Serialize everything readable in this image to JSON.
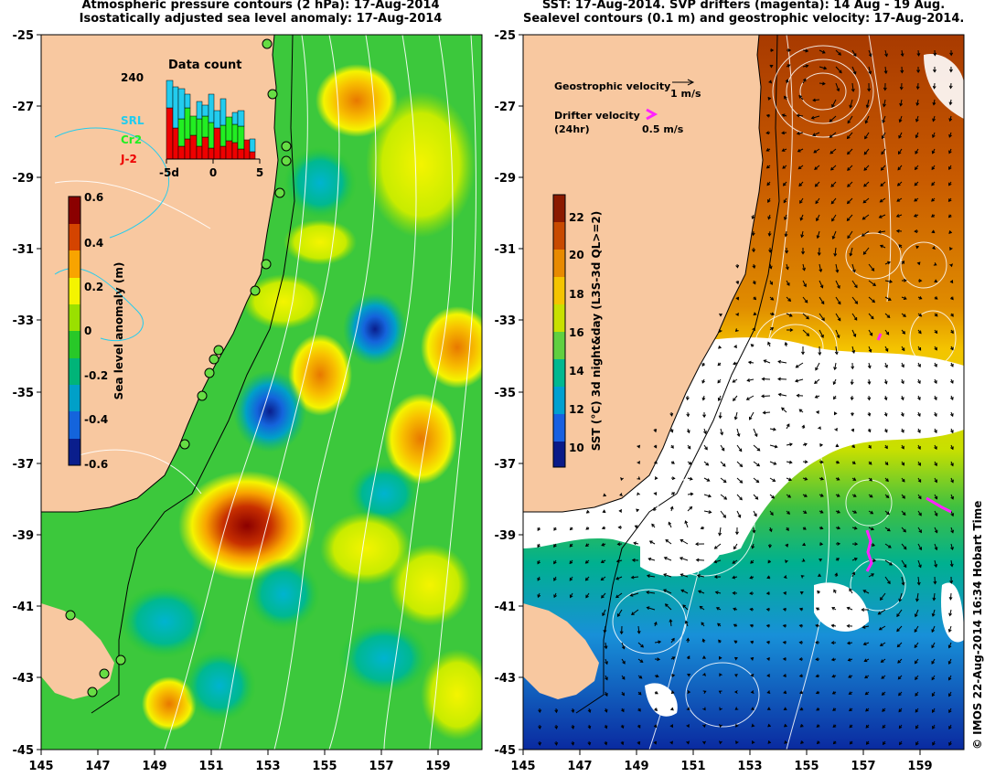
{
  "left_panel": {
    "title_line1": "Atmospheric pressure contours (2 hPa): 17-Aug-2014",
    "title_line2": "Isostatically adjusted sea level anomaly: 17-Aug-2014",
    "colorbar": {
      "label": "Sea level anomaly (m)",
      "ticks": [
        "0.6",
        "0.4",
        "0.2",
        "0",
        "-0.2",
        "-0.4",
        "-0.6"
      ],
      "colors": [
        "#8b0000",
        "#d44400",
        "#f8a400",
        "#f4f400",
        "#9ae000",
        "#28c828",
        "#00b478",
        "#00a0c8",
        "#1464dc",
        "#0a1e8c"
      ]
    },
    "data_count": {
      "title": "Data count",
      "max_label": "240",
      "x_ticks": [
        "-5d",
        "0",
        "5"
      ],
      "legend": [
        {
          "label": "SRL",
          "color": "#22ccee"
        },
        {
          "label": "Cr2",
          "color": "#22ee22"
        },
        {
          "label": "J-2",
          "color": "#ee0000"
        }
      ]
    },
    "lat_labels": [
      "-25",
      "-27",
      "-29",
      "-31",
      "-33",
      "-35",
      "-37",
      "-39",
      "-41",
      "-43",
      "-45"
    ],
    "lon_labels": [
      "145",
      "147",
      "149",
      "151",
      "153",
      "155",
      "157",
      "159"
    ]
  },
  "right_panel": {
    "title_line1": "SST: 17-Aug-2014. SVP drifters (magenta): 14 Aug - 19 Aug.",
    "title_line2": "Sealevel contours (0.1 m) and geostrophic velocity: 17-Aug-2014.",
    "legend_geo": "Geostrophic velocity",
    "legend_geo_scale": "1 m/s",
    "legend_drifter_1": "Drifter velocity",
    "legend_drifter_2": "(24hr)",
    "legend_drifter_scale": "0.5 m/s",
    "colorbar": {
      "label": "SST (°C) 3d night&day (L3S-3d QL>=2)",
      "ticks": [
        "22",
        "20",
        "18",
        "16",
        "14",
        "12",
        "10"
      ],
      "colors": [
        "#8b1a00",
        "#c84a00",
        "#e88a00",
        "#f4c400",
        "#c8e000",
        "#60d040",
        "#00b890",
        "#00a0d0",
        "#1860e0",
        "#0a1a88"
      ]
    },
    "lat_labels": [
      "-25",
      "-27",
      "-29",
      "-31",
      "-33",
      "-35",
      "-37",
      "-39",
      "-41",
      "-43",
      "-45"
    ],
    "lon_labels": [
      "145",
      "147",
      "149",
      "151",
      "153",
      "155",
      "157",
      "159"
    ]
  },
  "credit": "© IMOS 22-Aug-2014 16:34 Hobart Time",
  "colors": {
    "land": "#f8c8a0",
    "contour": "#ffffff"
  }
}
